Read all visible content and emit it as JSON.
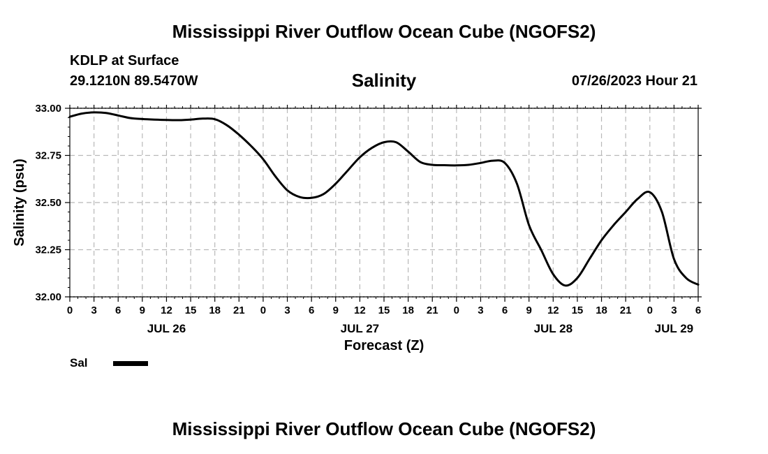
{
  "header": {
    "title": "Mississippi River Outflow Ocean Cube (NGOFS2)",
    "station": "KDLP at Surface",
    "coords": "29.1210N  89.5470W",
    "timestamp": "07/26/2023 Hour 21"
  },
  "footer": {
    "title": "Mississippi River Outflow Ocean Cube (NGOFS2)"
  },
  "legend": {
    "label": "Sal",
    "color": "#000000"
  },
  "chart_data": {
    "type": "line",
    "title": "Salinity",
    "xlabel": "Forecast (Z)",
    "ylabel": "Salinity (psu)",
    "xlim": [
      0,
      78
    ],
    "ylim": [
      32.0,
      33.0
    ],
    "yticks": [
      32.0,
      32.25,
      32.5,
      32.75,
      33.0
    ],
    "ytick_labels": [
      "32.00",
      "32.25",
      "32.50",
      "32.75",
      "33.00"
    ],
    "xtick_hours": [
      0,
      3,
      6,
      9,
      12,
      15,
      18,
      21,
      24,
      27,
      30,
      33,
      36,
      39,
      42,
      45,
      48,
      51,
      54,
      57,
      60,
      63,
      66,
      69,
      72,
      75,
      78
    ],
    "xtick_labels": [
      "0",
      "3",
      "6",
      "9",
      "12",
      "15",
      "18",
      "21",
      "0",
      "3",
      "6",
      "9",
      "12",
      "15",
      "18",
      "21",
      "0",
      "3",
      "6",
      "9",
      "12",
      "15",
      "18",
      "21",
      "0",
      "3",
      "6"
    ],
    "day_labels": [
      {
        "hour": 12,
        "label": "JUL 26"
      },
      {
        "hour": 36,
        "label": "JUL 27"
      },
      {
        "hour": 60,
        "label": "JUL 28"
      },
      {
        "hour": 75,
        "label": "JUL 29"
      }
    ],
    "grid": true,
    "series": [
      {
        "name": "Sal",
        "x": [
          0,
          1.5,
          3,
          4.5,
          6,
          7.5,
          9,
          10.5,
          12,
          13.5,
          15,
          16.5,
          18,
          19.5,
          21,
          22.5,
          24,
          25.5,
          27,
          28.5,
          30,
          31.5,
          33,
          34.5,
          36,
          37.5,
          39,
          40.5,
          42,
          43.5,
          45,
          46.5,
          48,
          49.5,
          51,
          52.5,
          54,
          55.5,
          57,
          58.5,
          60,
          61.5,
          63,
          64.5,
          66,
          67.5,
          69,
          70.5,
          72,
          73.5,
          75,
          76.5,
          78
        ],
        "values": [
          32.955,
          32.972,
          32.978,
          32.975,
          32.962,
          32.948,
          32.943,
          32.94,
          32.938,
          32.937,
          32.94,
          32.945,
          32.942,
          32.91,
          32.86,
          32.8,
          32.73,
          32.64,
          32.565,
          32.53,
          32.525,
          32.545,
          32.6,
          32.67,
          32.74,
          32.79,
          32.82,
          32.82,
          32.77,
          32.715,
          32.7,
          32.698,
          32.697,
          32.7,
          32.71,
          32.722,
          32.71,
          32.6,
          32.38,
          32.25,
          32.12,
          32.06,
          32.1,
          32.2,
          32.3,
          32.38,
          32.45,
          32.52,
          32.555,
          32.45,
          32.2,
          32.1,
          32.065
        ]
      }
    ]
  }
}
